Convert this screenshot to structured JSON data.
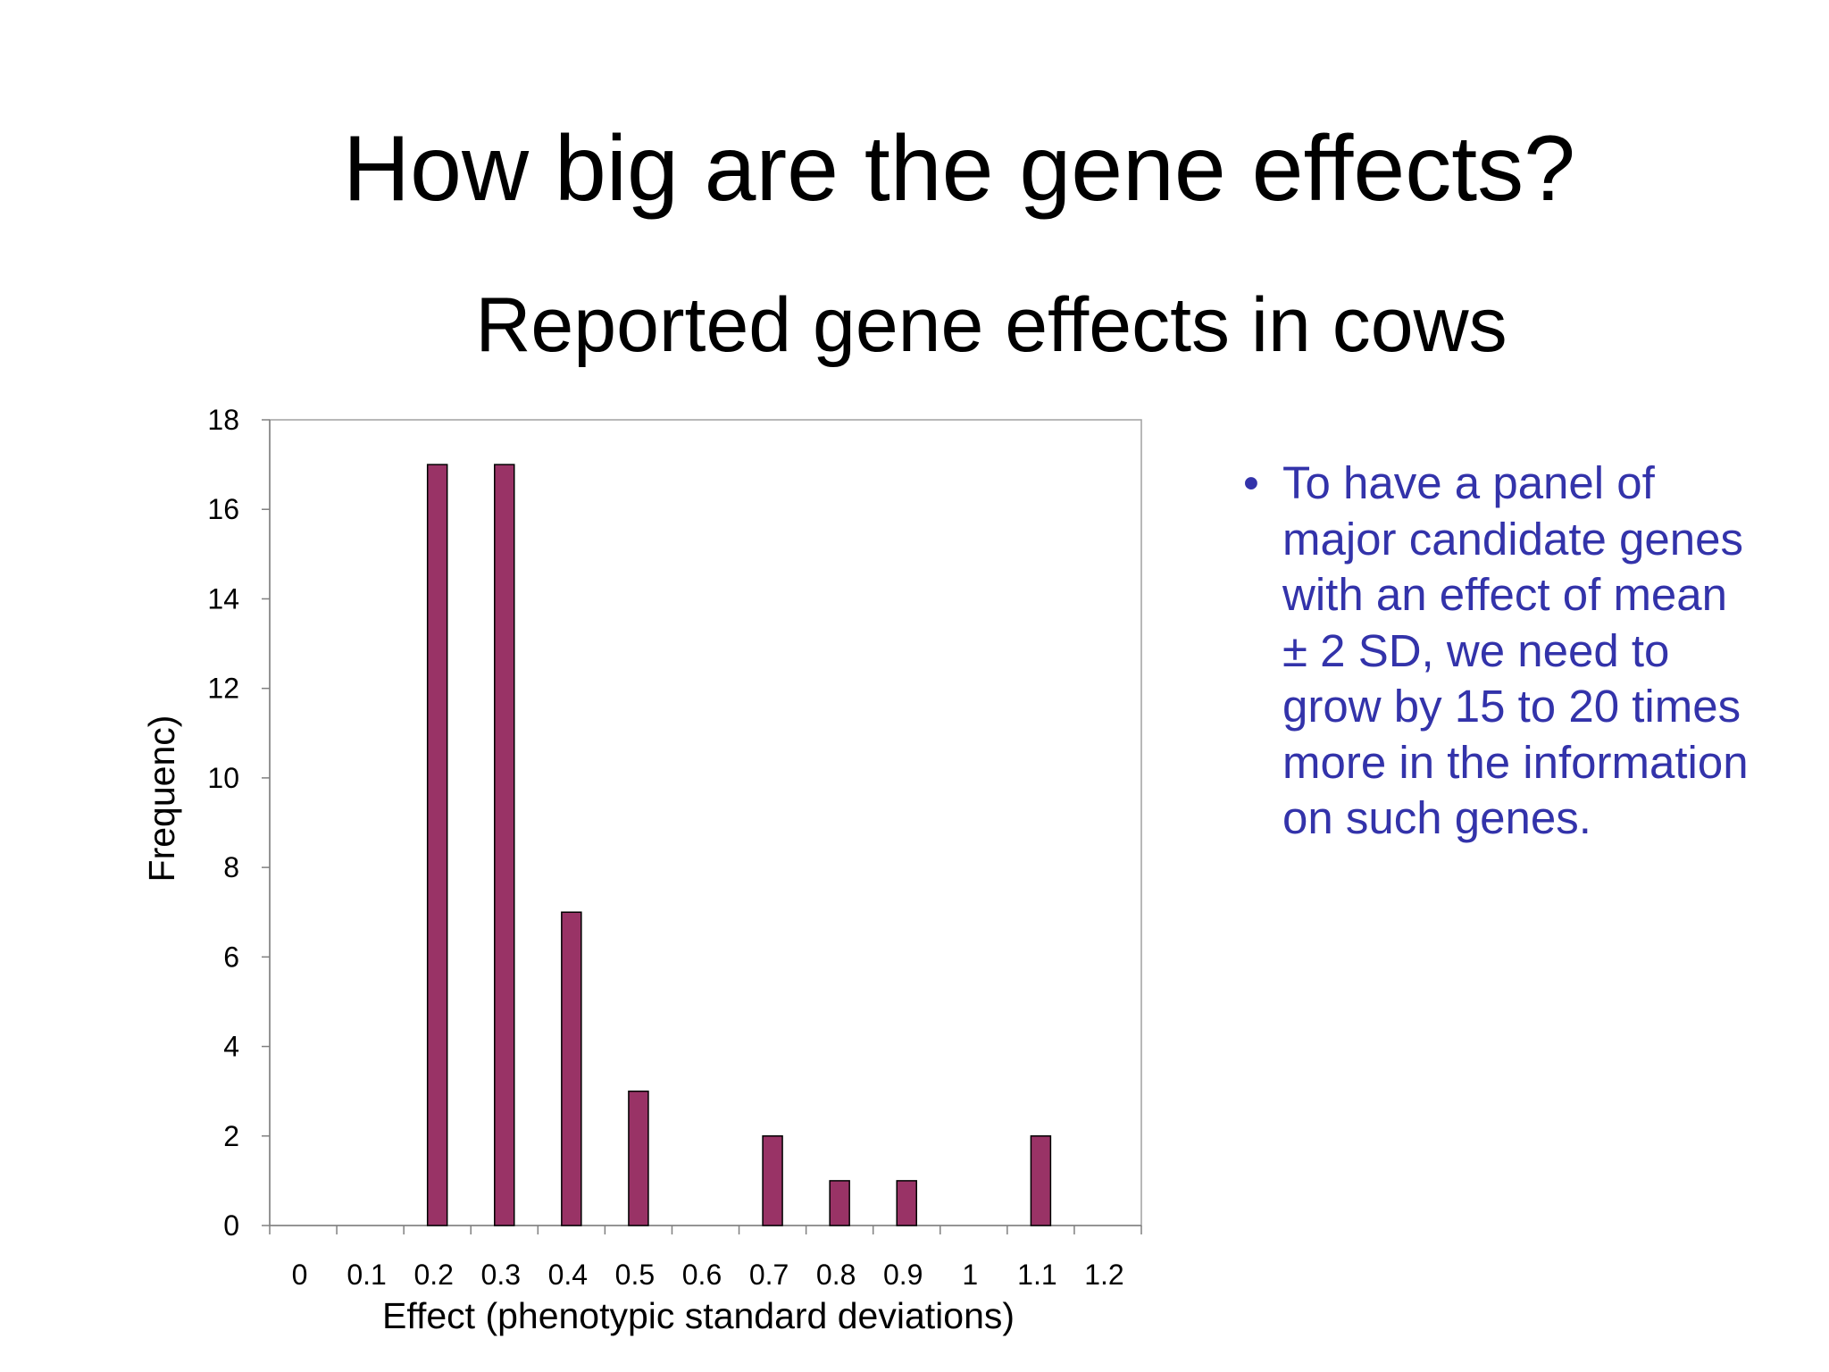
{
  "slide": {
    "title": "How big are the gene effects?",
    "bullet_marker": "•",
    "bullet_text": "To have  a panel of major candidate genes with an effect of mean ± 2 SD, we need to grow by 15 to 20 times more in the information on such genes."
  },
  "colors": {
    "bar_fill": "#993366",
    "bullet_text": "#3333aa",
    "title_text": "#000000"
  },
  "chart_data": {
    "type": "bar",
    "title": "Reported gene effects in cows",
    "xlabel": "Effect (phenotypic standard deviations)",
    "ylabel": "Frequenc)",
    "categories": [
      "0",
      "0.1",
      "0.2",
      "0.3",
      "0.4",
      "0.5",
      "0.6",
      "0.7",
      "0.8",
      "0.9",
      "1",
      "1.1",
      "1.2"
    ],
    "values": [
      0,
      0,
      17,
      17,
      7,
      3,
      0,
      2,
      1,
      1,
      0,
      2,
      0
    ],
    "ylim": [
      0,
      18
    ],
    "yticks": [
      "0",
      "2",
      "4",
      "6",
      "8",
      "10",
      "12",
      "14",
      "16",
      "18"
    ],
    "grid": false,
    "legend": "none"
  }
}
